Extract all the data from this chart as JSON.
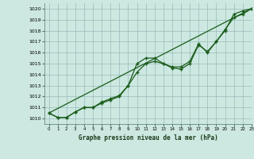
{
  "title": "Graphe pression niveau de la mer (hPa)",
  "bg_color": "#cce8e0",
  "grid_color": "#99bbbb",
  "line_color": "#1a5c1a",
  "xlim": [
    -0.5,
    23
  ],
  "ylim": [
    1009.5,
    1020.5
  ],
  "yticks": [
    1010,
    1011,
    1012,
    1013,
    1014,
    1015,
    1016,
    1017,
    1018,
    1019,
    1020
  ],
  "xticks": [
    0,
    1,
    2,
    3,
    4,
    5,
    6,
    7,
    8,
    9,
    10,
    11,
    12,
    13,
    14,
    15,
    16,
    17,
    18,
    19,
    20,
    21,
    22,
    23
  ],
  "line1_x": [
    0,
    1,
    2,
    3,
    4,
    5,
    6,
    7,
    8,
    9,
    10,
    11,
    12,
    13,
    14,
    15,
    16,
    17,
    18,
    19,
    20,
    21,
    22,
    23
  ],
  "line1_y": [
    1010.5,
    1010.1,
    1010.1,
    1010.6,
    1011.0,
    1011.0,
    1011.4,
    1011.7,
    1012.0,
    1013.0,
    1015.0,
    1015.5,
    1015.5,
    1015.0,
    1014.7,
    1014.7,
    1015.2,
    1016.8,
    1016.0,
    1017.0,
    1018.0,
    1019.5,
    1019.8,
    1020.0
  ],
  "line2_x": [
    0,
    1,
    2,
    3,
    4,
    5,
    6,
    7,
    8,
    9,
    10,
    11,
    12,
    13,
    14,
    15,
    16,
    17,
    18,
    19,
    20,
    21,
    22,
    23
  ],
  "line2_y": [
    1010.5,
    1010.1,
    1010.1,
    1010.6,
    1011.0,
    1011.0,
    1011.5,
    1011.8,
    1012.1,
    1013.0,
    1014.2,
    1015.0,
    1015.2,
    1015.0,
    1014.6,
    1014.5,
    1015.0,
    1016.7,
    1016.1,
    1017.0,
    1018.1,
    1019.2,
    1019.5,
    1020.0
  ],
  "line3_x": [
    0,
    23
  ],
  "line3_y": [
    1010.5,
    1020.0
  ]
}
